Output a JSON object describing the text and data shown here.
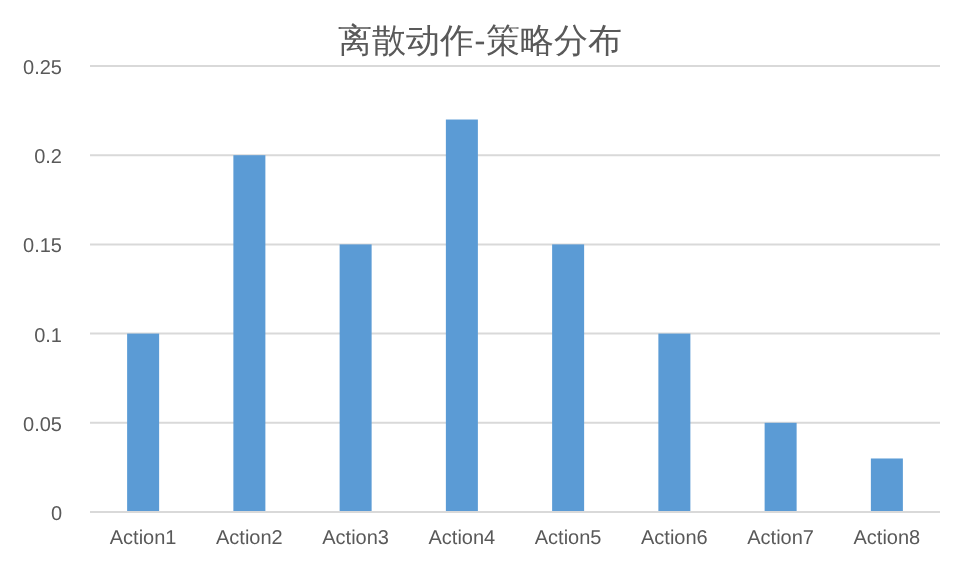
{
  "chart_data": {
    "type": "bar",
    "title": "离散动作-策略分布",
    "categories": [
      "Action1",
      "Action2",
      "Action3",
      "Action4",
      "Action5",
      "Action6",
      "Action7",
      "Action8"
    ],
    "values": [
      0.1,
      0.2,
      0.15,
      0.22,
      0.15,
      0.1,
      0.05,
      0.03
    ],
    "color": "#5b9bd5",
    "ylim": [
      0,
      0.25
    ],
    "yticks": [
      0,
      0.05,
      0.1,
      0.15,
      0.2,
      0.25
    ],
    "grid": "y"
  }
}
